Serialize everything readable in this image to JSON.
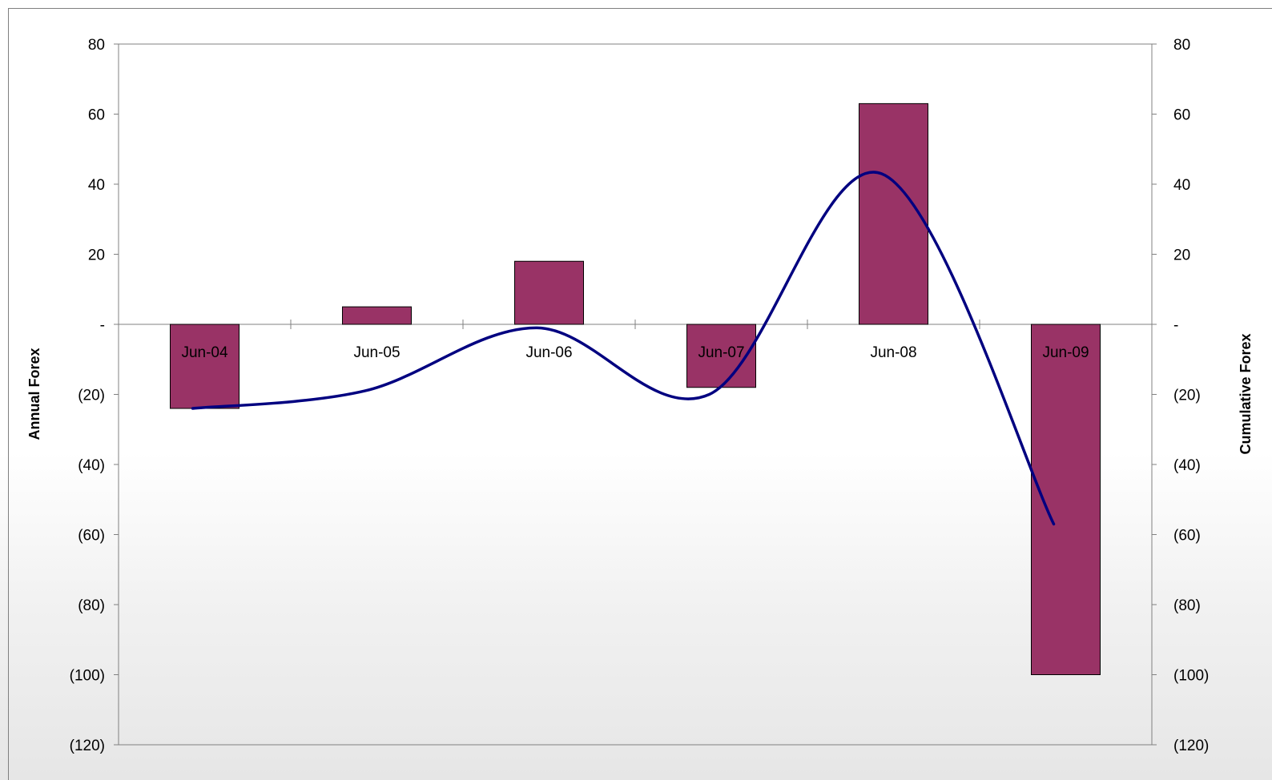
{
  "chart_data": {
    "type": "bar",
    "categories": [
      "Jun-04",
      "Jun-05",
      "Jun-06",
      "Jun-07",
      "Jun-08",
      "Jun-09"
    ],
    "series": [
      {
        "type": "bar",
        "axis": "left",
        "values": [
          -24,
          5,
          18,
          -18,
          63,
          -100
        ],
        "color": "#993366"
      },
      {
        "type": "line",
        "axis": "right",
        "smooth": true,
        "values": [
          -24,
          -19,
          -1,
          -20,
          43,
          -57
        ],
        "color": "#000080"
      }
    ],
    "ylabel": "Annual Forex",
    "y2label": "Cumulative Forex",
    "ylim": [
      -120,
      80
    ],
    "y2lim": [
      -120,
      80
    ],
    "yticks": [
      80,
      60,
      40,
      20,
      0,
      -20,
      -40,
      -60,
      -80,
      -100,
      -120
    ],
    "ytick_labels": [
      "80",
      "60",
      "40",
      "20",
      "-",
      "(20)",
      "(40)",
      "(60)",
      "(80)",
      "(100)",
      "(120)"
    ],
    "grid": false,
    "legend": "none"
  }
}
